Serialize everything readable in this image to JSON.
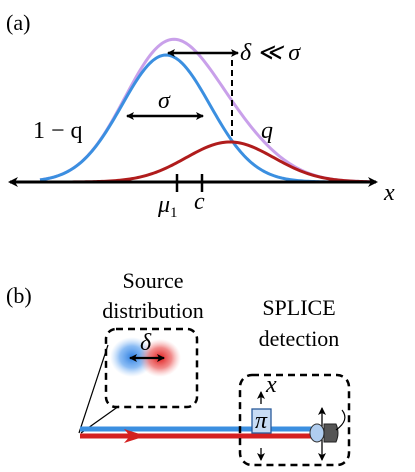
{
  "panel_a": {
    "label": "(a)",
    "delta_relation": "δ ≪ σ",
    "sigma": "σ",
    "one_minus_q": "1 − q",
    "q": "q",
    "x_axis": "x",
    "mu1": "μ",
    "mu1_sub": "1",
    "c": "c",
    "colors": {
      "blue": "#3b8fe0",
      "red": "#b01c1c",
      "purple": "#c9a0ea"
    }
  },
  "panel_b": {
    "label": "(b)",
    "source_line1": "Source",
    "source_line2": "distribution",
    "delta": "δ",
    "splice_line1": "SPLICE",
    "splice_line2": "detection",
    "x": "x",
    "pi": "π",
    "colors": {
      "blue": "#3b8fe0",
      "red": "#d42020",
      "box_fill": "#c8dcf4"
    }
  }
}
